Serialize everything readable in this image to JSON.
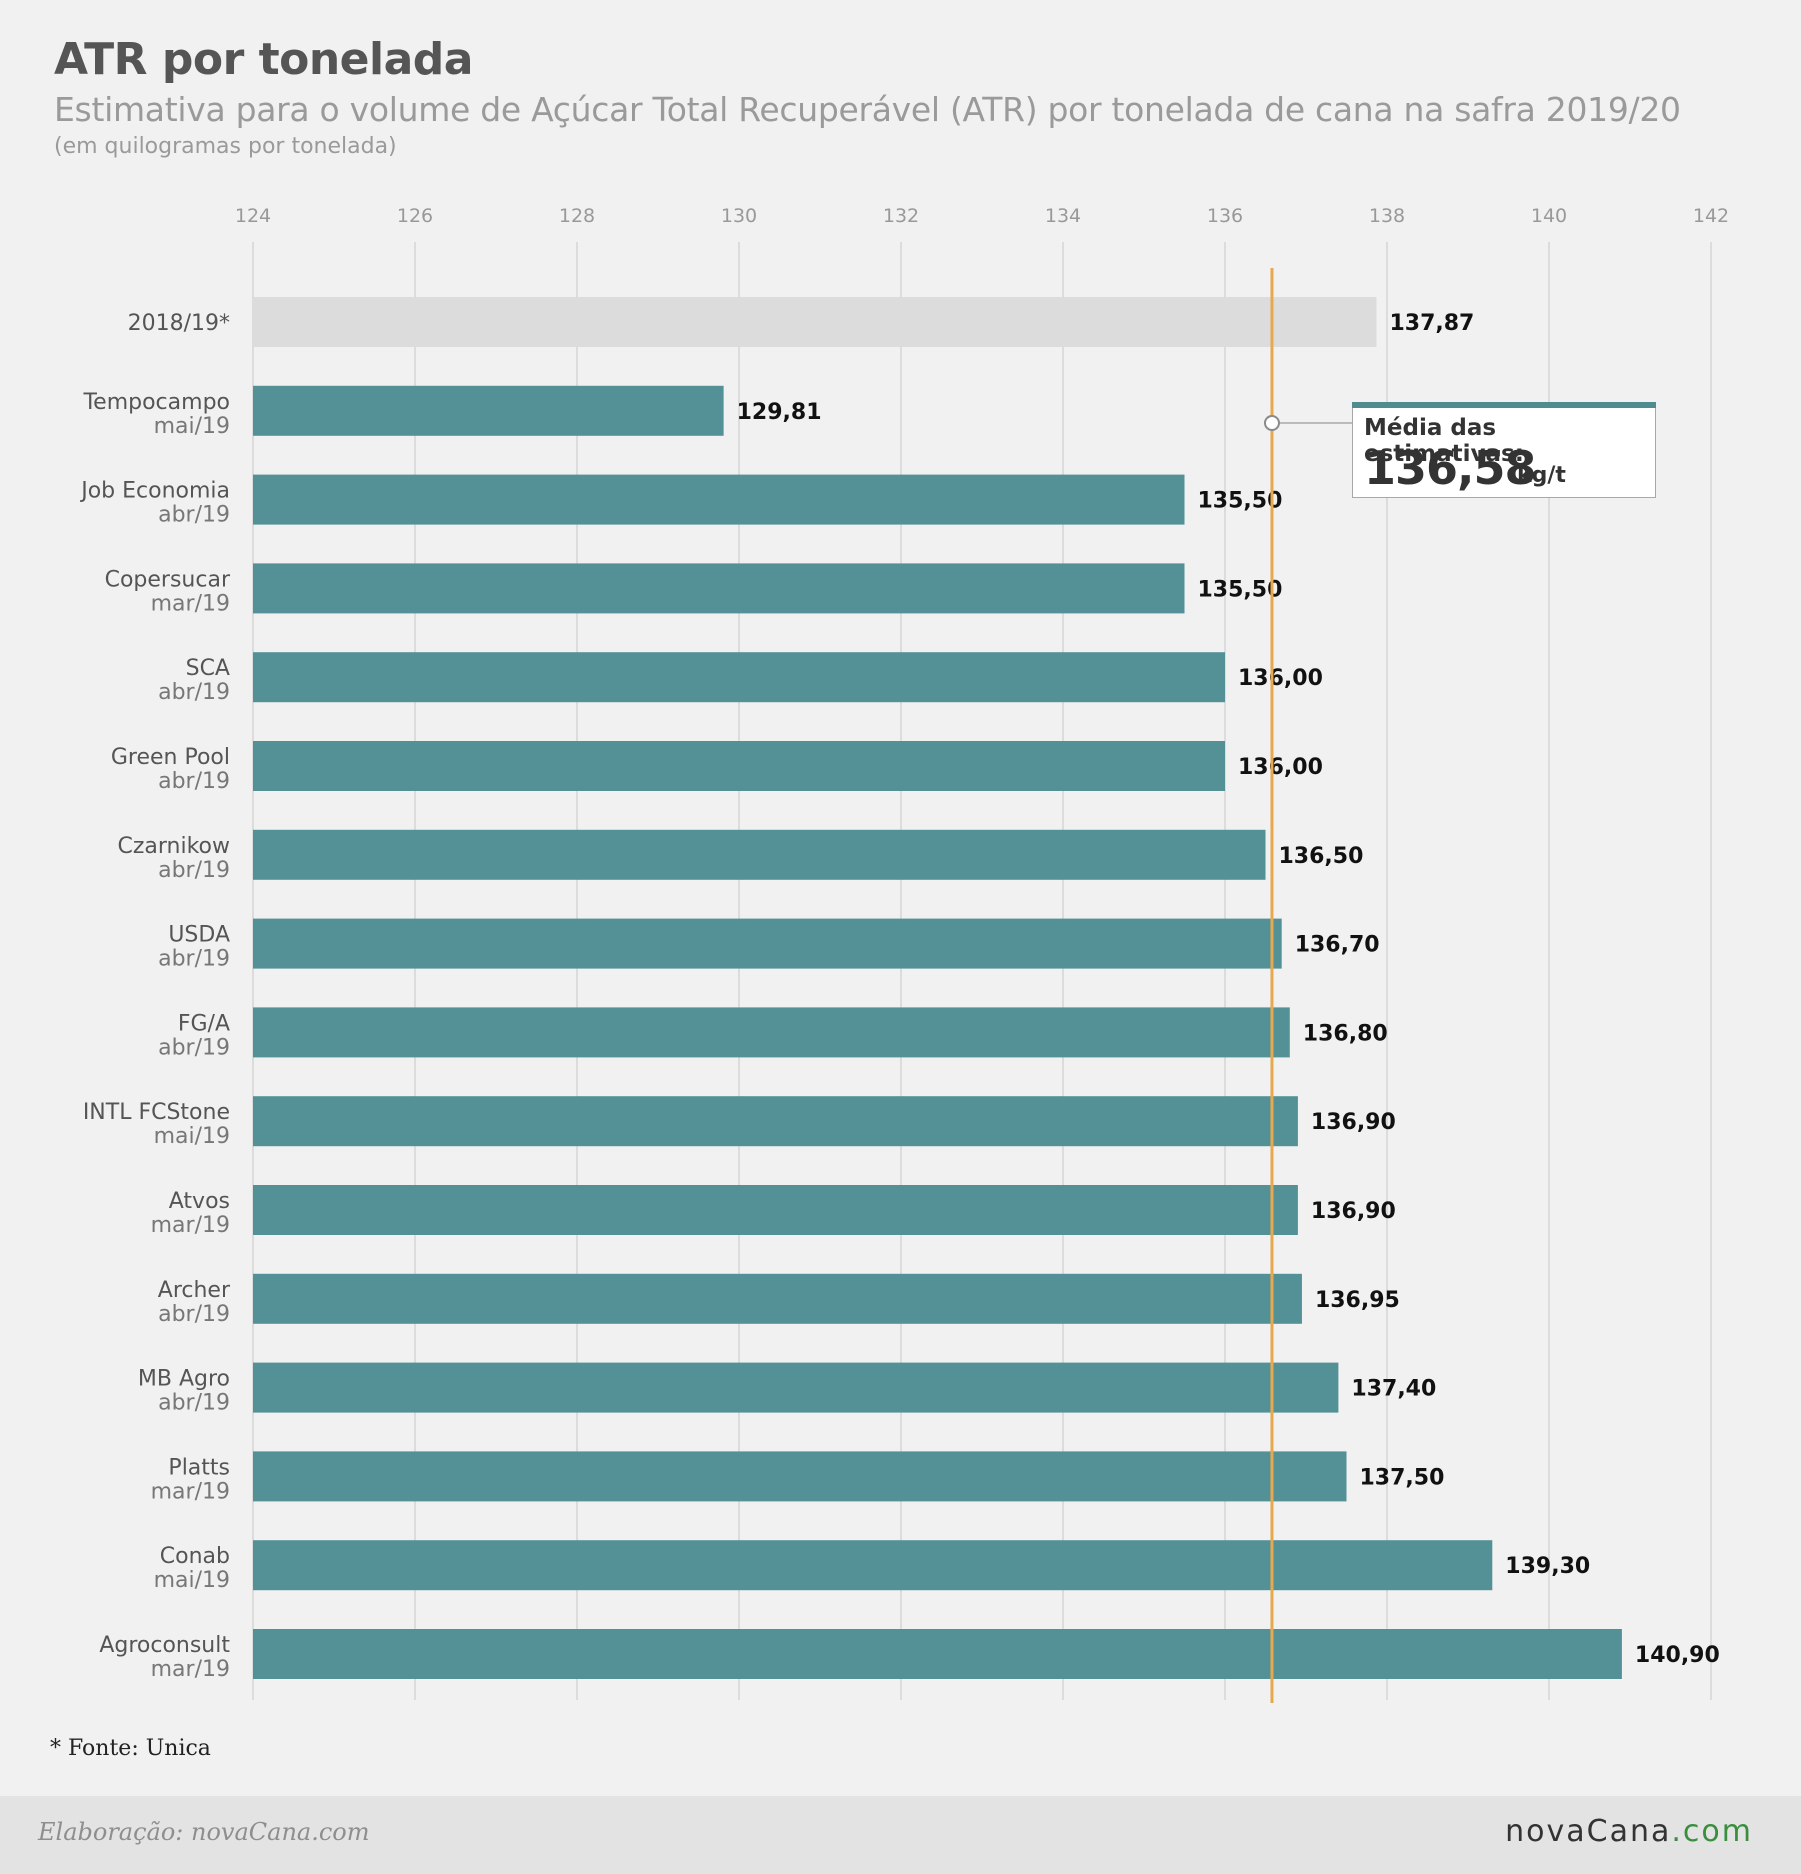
{
  "header": {
    "title": "ATR por tonelada",
    "subtitle": "Estimativa para o volume de Açúcar Total Recuperável (ATR) por tonelada de cana na safra 2019/20",
    "unit_note": "(em quilogramas por tonelada)"
  },
  "chart_data": {
    "type": "bar",
    "orientation": "horizontal",
    "xlim": [
      124,
      142
    ],
    "xticks": [
      "124",
      "126",
      "128",
      "130",
      "132",
      "134",
      "136",
      "138",
      "140",
      "142"
    ],
    "grid": true,
    "categories": [
      {
        "name": "2018/19*",
        "date": "",
        "value": 137.87,
        "label": "137,87",
        "highlight": false
      },
      {
        "name": "Tempocampo",
        "date": "mai/19",
        "value": 129.81,
        "label": "129,81",
        "highlight": true
      },
      {
        "name": "Job Economia",
        "date": "abr/19",
        "value": 135.5,
        "label": "135,50",
        "highlight": true
      },
      {
        "name": "Copersucar",
        "date": "mar/19",
        "value": 135.5,
        "label": "135,50",
        "highlight": true
      },
      {
        "name": "SCA",
        "date": "abr/19",
        "value": 136.0,
        "label": "136,00",
        "highlight": true
      },
      {
        "name": "Green Pool",
        "date": "abr/19",
        "value": 136.0,
        "label": "136,00",
        "highlight": true
      },
      {
        "name": "Czarnikow",
        "date": "abr/19",
        "value": 136.5,
        "label": "136,50",
        "highlight": true
      },
      {
        "name": "USDA",
        "date": "abr/19",
        "value": 136.7,
        "label": "136,70",
        "highlight": true
      },
      {
        "name": "FG/A",
        "date": "abr/19",
        "value": 136.8,
        "label": "136,80",
        "highlight": true
      },
      {
        "name": "INTL FCStone",
        "date": "mai/19",
        "value": 136.9,
        "label": "136,90",
        "highlight": true
      },
      {
        "name": "Atvos",
        "date": "mar/19",
        "value": 136.9,
        "label": "136,90",
        "highlight": true
      },
      {
        "name": "Archer",
        "date": "abr/19",
        "value": 136.95,
        "label": "136,95",
        "highlight": true
      },
      {
        "name": "MB Agro",
        "date": "abr/19",
        "value": 137.4,
        "label": "137,40",
        "highlight": true
      },
      {
        "name": "Platts",
        "date": "mar/19",
        "value": 137.5,
        "label": "137,50",
        "highlight": true
      },
      {
        "name": "Conab",
        "date": "mai/19",
        "value": 139.3,
        "label": "139,30",
        "highlight": true
      },
      {
        "name": "Agroconsult",
        "date": "mar/19",
        "value": 140.9,
        "label": "140,90",
        "highlight": true
      }
    ],
    "reference_line": {
      "value": 136.58,
      "label": "Média das estimativas:",
      "value_label": "136,58",
      "unit": "kg/t"
    },
    "colors": {
      "bar": "#539196",
      "bar_previous": "#dcdcdc",
      "reference_line": "#e8a94e",
      "grid": "#d6d6d6"
    }
  },
  "footer": {
    "source": "* Fonte: Unica",
    "credit": "Elaboração: novaCana.com",
    "logo_main": "novaCana",
    "logo_suffix": ".com"
  }
}
